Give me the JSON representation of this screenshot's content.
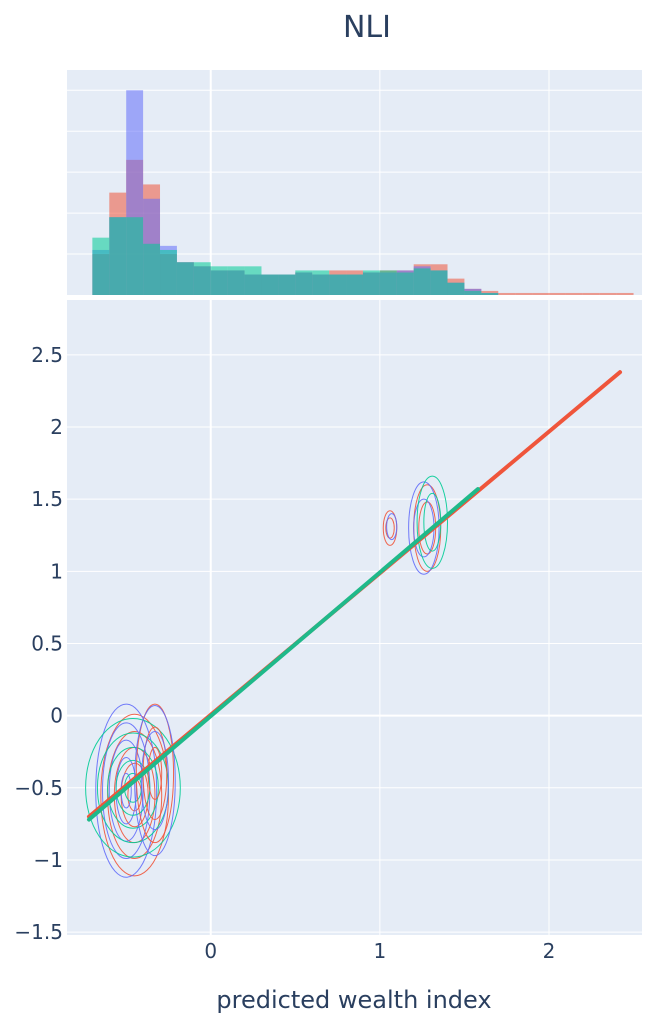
{
  "chart_data": {
    "type": "scatter",
    "title": "NLI",
    "xlabel": "predicted wealth index",
    "ylabel": "",
    "xlim": [
      -0.85,
      2.55
    ],
    "ylim": [
      -1.52,
      2.88
    ],
    "x_ticks": [
      {
        "value": 0,
        "label": "0"
      },
      {
        "value": 1,
        "label": "1"
      },
      {
        "value": 2,
        "label": "2"
      }
    ],
    "y_ticks": [
      {
        "value": 2.5,
        "label": "2.5"
      },
      {
        "value": 2,
        "label": "2"
      },
      {
        "value": 1.5,
        "label": "1.5"
      },
      {
        "value": 1,
        "label": "1"
      },
      {
        "value": 0.5,
        "label": "0.5"
      },
      {
        "value": 0,
        "label": "0"
      },
      {
        "value": -0.5,
        "label": "−0.5"
      },
      {
        "value": -1,
        "label": "−1"
      },
      {
        "value": -1.5,
        "label": "−1.5"
      }
    ],
    "grid": true,
    "colors": {
      "red": "#EF553B",
      "blue": "#636EFA",
      "teal": "#00CC96",
      "green": "#1FB98A",
      "plot_bg": "#E5ECF6",
      "text": "#2a3f5f"
    },
    "marginal_histogram": {
      "bin_edges": [
        -0.7,
        -0.6,
        -0.5,
        -0.4,
        -0.3,
        -0.2,
        -0.1,
        0.0,
        0.1,
        0.2,
        0.3,
        0.4,
        0.5,
        0.6,
        0.7,
        0.8,
        0.9,
        1.0,
        1.1,
        1.2,
        1.3,
        1.4,
        1.5,
        1.6,
        1.7,
        1.8,
        1.9,
        2.0,
        2.1,
        2.2,
        2.3,
        2.4,
        2.5
      ],
      "series": [
        {
          "color": "red",
          "values": [
            20,
            50,
            66,
            54,
            20,
            16,
            14,
            12,
            12,
            10,
            10,
            10,
            11,
            10,
            12,
            12,
            11,
            12,
            12,
            15,
            15,
            8,
            3,
            2,
            1,
            1,
            1,
            1,
            1,
            1,
            1,
            1
          ]
        },
        {
          "color": "blue",
          "values": [
            22,
            38,
            100,
            47,
            24,
            16,
            14,
            12,
            12,
            10,
            10,
            10,
            11,
            10,
            10,
            10,
            11,
            11,
            12,
            14,
            12,
            6,
            3,
            1,
            0,
            0,
            0,
            0,
            0,
            0,
            0,
            0
          ]
        },
        {
          "color": "teal",
          "values": [
            28,
            38,
            38,
            25,
            22,
            16,
            16,
            14,
            14,
            14,
            10,
            10,
            12,
            12,
            10,
            10,
            12,
            12,
            11,
            13,
            12,
            6,
            2,
            1,
            0,
            0,
            0,
            0,
            0,
            0,
            0,
            0
          ]
        }
      ]
    },
    "trend_lines": [
      {
        "color": "red",
        "x": [
          -0.72,
          2.42
        ],
        "y": [
          -0.7,
          2.38
        ]
      },
      {
        "color": "green",
        "x": [
          -0.72,
          1.58
        ],
        "y": [
          -0.72,
          1.57
        ]
      }
    ],
    "density_contours": [
      {
        "color": "red",
        "center": [
          -0.45,
          -0.55
        ],
        "levels": [
          [
            0.2,
            0.56
          ],
          [
            0.16,
            0.44
          ],
          [
            0.12,
            0.33
          ],
          [
            0.08,
            0.22
          ],
          [
            0.04,
            0.11
          ]
        ]
      },
      {
        "color": "blue",
        "center": [
          -0.5,
          -0.52
        ],
        "levels": [
          [
            0.18,
            0.6
          ],
          [
            0.14,
            0.47
          ],
          [
            0.1,
            0.35
          ],
          [
            0.06,
            0.23
          ],
          [
            0.03,
            0.12
          ]
        ]
      },
      {
        "color": "teal",
        "center": [
          -0.46,
          -0.5
        ],
        "levels": [
          [
            0.28,
            0.48
          ],
          [
            0.21,
            0.38
          ],
          [
            0.15,
            0.28
          ],
          [
            0.1,
            0.19
          ],
          [
            0.05,
            0.1
          ]
        ]
      },
      {
        "color": "red",
        "center": [
          -0.33,
          -0.4
        ],
        "levels": [
          [
            0.11,
            0.48
          ],
          [
            0.07,
            0.32
          ],
          [
            0.04,
            0.18
          ]
        ]
      },
      {
        "color": "blue",
        "center": [
          -0.33,
          -0.45
        ],
        "levels": [
          [
            0.12,
            0.52
          ],
          [
            0.08,
            0.34
          ]
        ]
      },
      {
        "color": "red",
        "center": [
          1.06,
          1.3
        ],
        "levels": [
          [
            0.04,
            0.12
          ],
          [
            0.025,
            0.07
          ]
        ]
      },
      {
        "color": "blue",
        "center": [
          1.07,
          1.31
        ],
        "levels": [
          [
            0.03,
            0.09
          ]
        ]
      },
      {
        "color": "red",
        "center": [
          1.28,
          1.3
        ],
        "levels": [
          [
            0.08,
            0.3
          ],
          [
            0.05,
            0.18
          ]
        ]
      },
      {
        "color": "blue",
        "center": [
          1.26,
          1.3
        ],
        "levels": [
          [
            0.09,
            0.32
          ],
          [
            0.06,
            0.2
          ]
        ]
      },
      {
        "color": "teal",
        "center": [
          1.31,
          1.34
        ],
        "levels": [
          [
            0.09,
            0.32
          ],
          [
            0.05,
            0.2
          ]
        ]
      }
    ]
  }
}
